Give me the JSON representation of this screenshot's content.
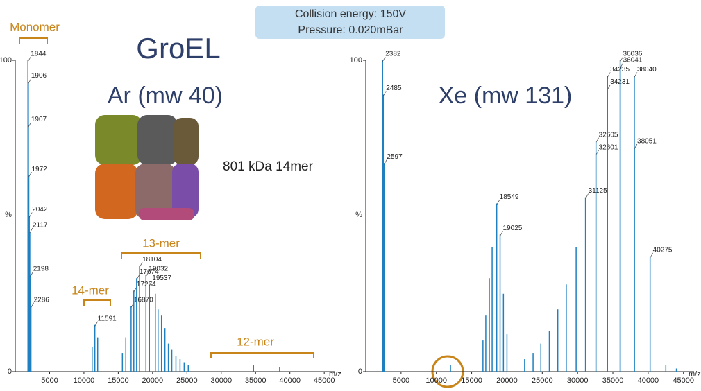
{
  "slide": {
    "title": "GroEL",
    "info": [
      "Collision energy: 150V",
      "Pressure: 0.020mBar"
    ],
    "caption": "801 kDa 14mer"
  },
  "chart_data": [
    {
      "type": "spectrum",
      "title": "Ar (mw 40)",
      "color": "#1f80c0",
      "y_label": "%",
      "x_label": "m/z",
      "xlim": [
        0,
        46500
      ],
      "xticks": [
        5000,
        10000,
        15000,
        20000,
        25000,
        30000,
        35000,
        40000,
        45000
      ],
      "ylim": [
        0,
        100
      ],
      "yticks": [
        0,
        100
      ],
      "annotations": [
        "Monomer",
        "14-mer",
        "13-mer",
        "12-mer"
      ],
      "labeled_peaks": {
        "x": [
          1844,
          1906,
          1907,
          1972,
          2042,
          2117,
          2198,
          2286,
          11591,
          16870,
          17264,
          17674,
          18104,
          19032,
          19537
        ],
        "values": [
          100,
          93,
          79,
          63,
          50,
          45,
          31,
          21,
          15,
          21,
          26,
          30,
          34,
          31,
          28
        ]
      },
      "peaks": {
        "x": [
          11200,
          12000,
          15600,
          16100,
          20400,
          20800,
          21300,
          21800,
          22300,
          22800,
          23400,
          24000,
          24600,
          25200,
          34700,
          38500
        ],
        "values": [
          8,
          11,
          6,
          11,
          25,
          20,
          18,
          14,
          9,
          7,
          5,
          4,
          3,
          2,
          2,
          1.5
        ]
      }
    },
    {
      "type": "spectrum",
      "title": "Xe (mw 131)",
      "color": "#1f80c0",
      "y_label": "%",
      "x_label": "m/z",
      "xlim": [
        0,
        46500
      ],
      "xticks": [
        5000,
        10000,
        15000,
        20000,
        25000,
        30000,
        35000,
        40000,
        45000
      ],
      "ylim": [
        0,
        100
      ],
      "yticks": [
        0,
        100
      ],
      "annotations": [],
      "labeled_peaks": {
        "x": [
          2382,
          2485,
          2597,
          18549,
          19025,
          31125,
          32601,
          32605,
          34231,
          34235,
          36036,
          36041,
          38040,
          38051,
          40275
        ],
        "values": [
          100,
          89,
          67,
          54,
          44,
          56,
          70,
          74,
          91,
          95,
          100,
          98,
          95,
          72,
          37
        ]
      },
      "peaks": {
        "x": [
          12000,
          16600,
          17000,
          17500,
          17900,
          19500,
          20000,
          22500,
          23700,
          24800,
          26000,
          27200,
          28400,
          29800,
          42500,
          44000
        ],
        "values": [
          2,
          10,
          18,
          30,
          40,
          25,
          12,
          4,
          6,
          9,
          13,
          20,
          28,
          40,
          2,
          1
        ]
      }
    }
  ]
}
